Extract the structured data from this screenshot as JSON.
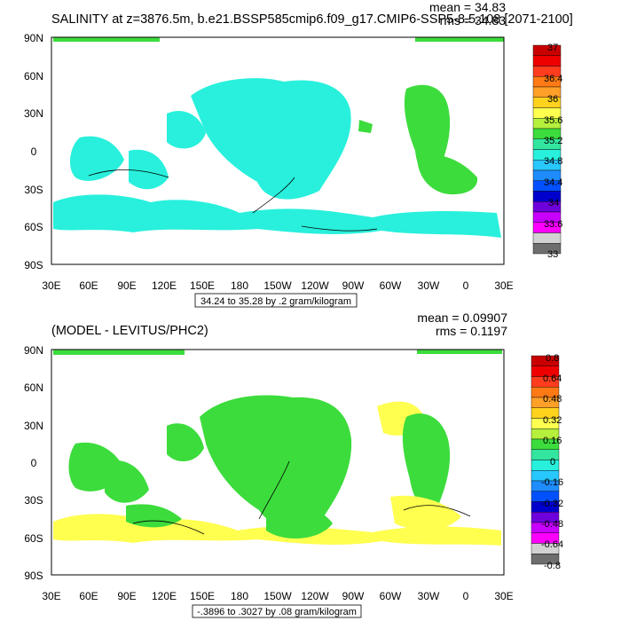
{
  "chart_data": [
    {
      "type": "heatmap",
      "title": "SALINITY at z=3876.5m, b.e21.BSSP585cmip6.f09_g17.CMIP6-SSP5-8.5.108 [2071-2100]",
      "stats": {
        "mean": "mean = 34.83",
        "rms": "rms = 34.83"
      },
      "ytick_labels": [
        "90N",
        "60N",
        "30N",
        "0",
        "30S",
        "60S",
        "90S"
      ],
      "xtick_labels": [
        "30E",
        "60E",
        "90E",
        "120E",
        "150E",
        "180",
        "150W",
        "120W",
        "90W",
        "60W",
        "30W",
        "0",
        "30E"
      ],
      "contour_info": "34.24 to 35.28 by .2 gram/kilogram",
      "colorbar": {
        "labels": [
          "37",
          "36.4",
          "36",
          "35.6",
          "35.2",
          "34.8",
          "34.4",
          "34",
          "33.6",
          "33"
        ],
        "colors": [
          "#c80000",
          "#ee0000",
          "#ff3c1e",
          "#ff7a14",
          "#ffa028",
          "#ffd21e",
          "#ffff50",
          "#b4f03c",
          "#3cdc3c",
          "#32e6a0",
          "#28f0dc",
          "#28c8ff",
          "#1e8cff",
          "#0050ff",
          "#0000cd",
          "#6e00dc",
          "#c800ff",
          "#ff00ff",
          "#d2d2d2",
          "#6e6e6e"
        ]
      }
    },
    {
      "type": "heatmap",
      "title": "(MODEL - LEVITUS/PHC2)",
      "stats": {
        "mean": "mean = 0.09907",
        "rms": "rms = 0.1197"
      },
      "ytick_labels": [
        "90N",
        "60N",
        "30N",
        "0",
        "30S",
        "60S",
        "90S"
      ],
      "xtick_labels": [
        "30E",
        "60E",
        "90E",
        "120E",
        "150E",
        "180",
        "150W",
        "120W",
        "90W",
        "60W",
        "30W",
        "0",
        "30E"
      ],
      "contour_info": "-.3896 to .3027 by .08 gram/kilogram",
      "colorbar": {
        "labels": [
          "0.8",
          "0.64",
          "0.48",
          "0.32",
          "0.16",
          "0",
          "-0.16",
          "-0.32",
          "-0.48",
          "-0.64",
          "-0.8"
        ],
        "colors": [
          "#c80000",
          "#ee0000",
          "#ff3c1e",
          "#ff7a14",
          "#ffa028",
          "#ffd21e",
          "#ffff50",
          "#b4f03c",
          "#3cdc3c",
          "#32e6a0",
          "#28f0dc",
          "#28c8ff",
          "#1e8cff",
          "#0050ff",
          "#0000cd",
          "#6e00dc",
          "#c800ff",
          "#ff00ff",
          "#d2d2d2",
          "#6e6e6e"
        ]
      }
    }
  ]
}
